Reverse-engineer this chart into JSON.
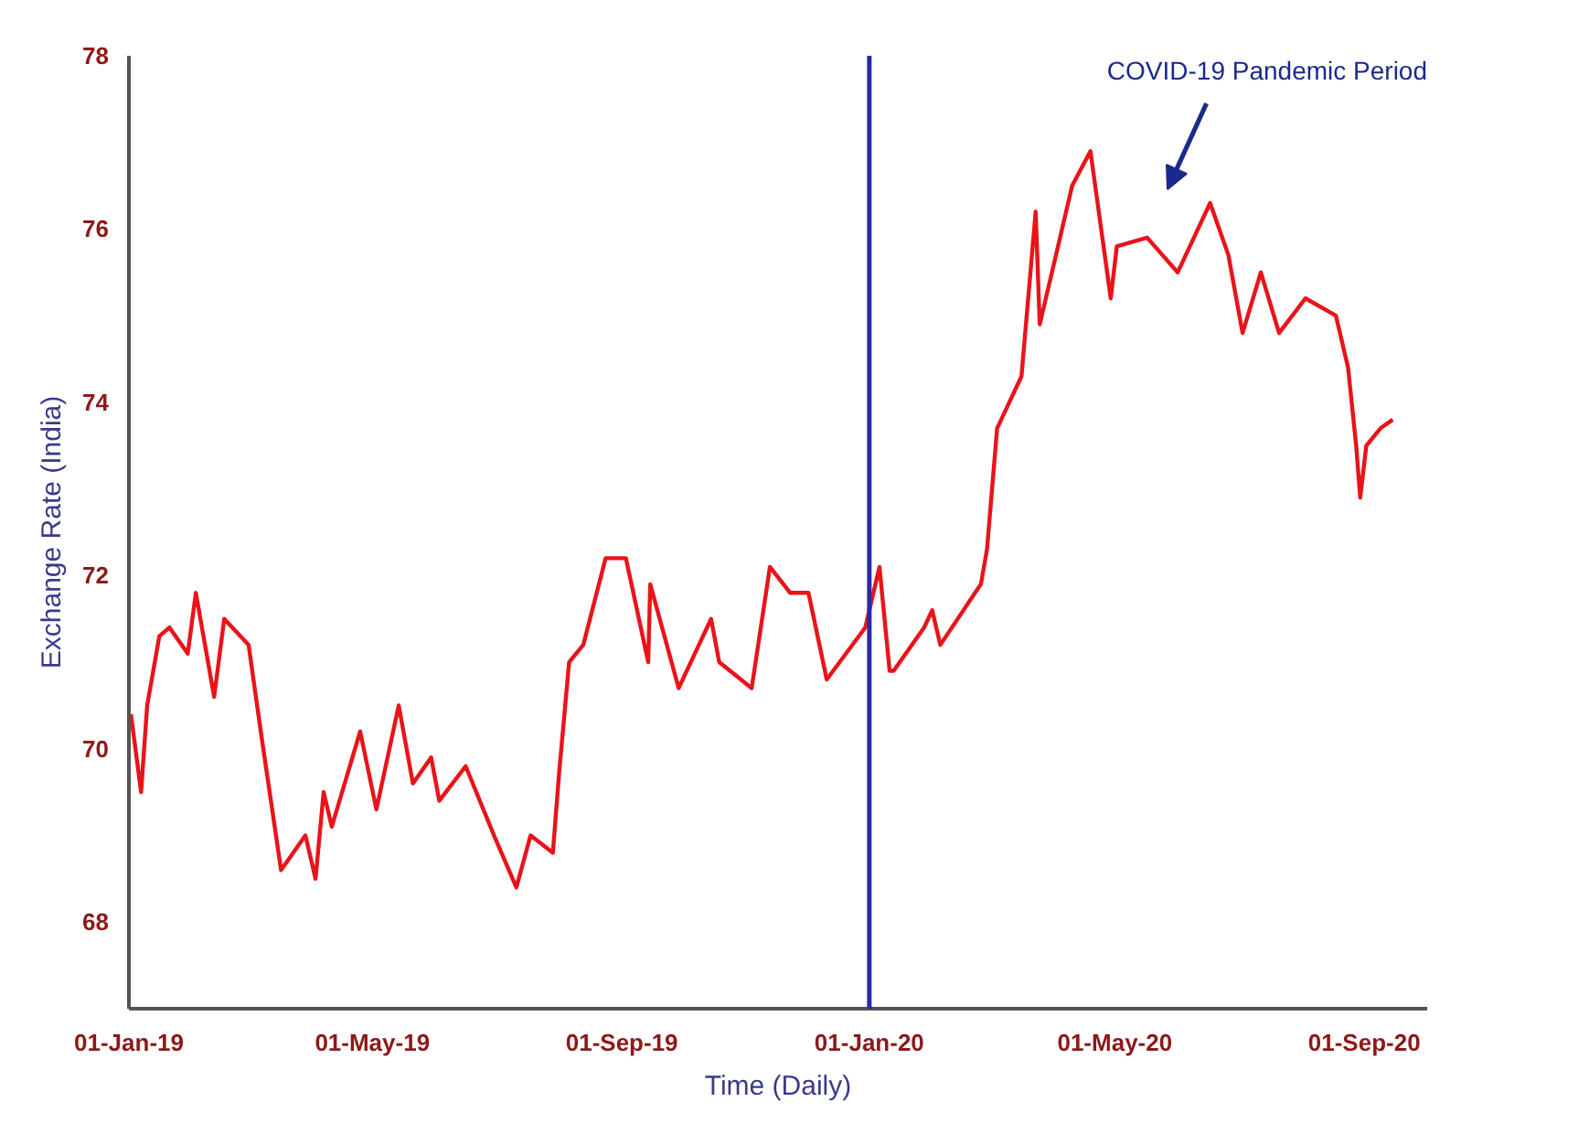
{
  "chart_data": {
    "type": "line",
    "xlabel": "Time (Daily)",
    "ylabel": "Exchange Rate (India)",
    "x": [
      "2019-01-02",
      "2019-01-07",
      "2019-01-10",
      "2019-01-16",
      "2019-01-21",
      "2019-01-30",
      "2019-02-03",
      "2019-02-12",
      "2019-02-17",
      "2019-03-01",
      "2019-03-07",
      "2019-03-17",
      "2019-03-29",
      "2019-04-03",
      "2019-04-07",
      "2019-04-11",
      "2019-04-25",
      "2019-05-03",
      "2019-05-14",
      "2019-05-21",
      "2019-05-30",
      "2019-06-03",
      "2019-06-16",
      "2019-06-30",
      "2019-07-11",
      "2019-07-18",
      "2019-07-29",
      "2019-08-01",
      "2019-08-06",
      "2019-08-13",
      "2019-08-24",
      "2019-09-03",
      "2019-09-14",
      "2019-09-15",
      "2019-09-29",
      "2019-10-15",
      "2019-10-19",
      "2019-11-04",
      "2019-11-13",
      "2019-11-23",
      "2019-12-02",
      "2019-12-11",
      "2019-12-30",
      "2020-01-06",
      "2020-01-11",
      "2020-01-13",
      "2020-01-28",
      "2020-02-01",
      "2020-02-05",
      "2020-02-25",
      "2020-02-28",
      "2020-03-04",
      "2020-03-16",
      "2020-03-23",
      "2020-03-25",
      "2020-04-04",
      "2020-04-10",
      "2020-04-19",
      "2020-04-29",
      "2020-05-02",
      "2020-05-17",
      "2020-06-01",
      "2020-06-17",
      "2020-06-26",
      "2020-07-03",
      "2020-07-12",
      "2020-07-21",
      "2020-08-03",
      "2020-08-18",
      "2020-08-24",
      "2020-08-28",
      "2020-08-30",
      "2020-09-02",
      "2020-09-09",
      "2020-09-15"
    ],
    "series": [
      {
        "color": "#e8141a",
        "values": [
          70.4,
          69.5,
          70.5,
          71.3,
          71.4,
          71.1,
          71.8,
          70.6,
          71.5,
          71.2,
          70.2,
          68.6,
          69.0,
          68.5,
          69.5,
          69.1,
          70.2,
          69.3,
          70.5,
          69.6,
          69.9,
          69.4,
          69.8,
          69.0,
          68.4,
          69.0,
          68.8,
          69.7,
          71.0,
          71.2,
          72.2,
          72.2,
          71.0,
          71.9,
          70.7,
          71.5,
          71.0,
          70.7,
          72.1,
          71.8,
          71.8,
          70.8,
          71.4,
          72.1,
          70.9,
          70.9,
          71.4,
          71.6,
          71.2,
          71.9,
          72.3,
          73.7,
          74.3,
          76.2,
          74.9,
          75.9,
          76.5,
          76.9,
          75.2,
          75.8,
          75.9,
          75.5,
          76.3,
          75.7,
          74.8,
          75.5,
          74.8,
          75.2,
          75.0,
          74.4,
          73.5,
          72.9,
          73.5,
          73.7,
          73.8
        ]
      }
    ],
    "xlim": [
      "2019-01-01",
      "2020-10-02"
    ],
    "ylim": [
      67,
      78
    ],
    "xticks": [
      {
        "value": "2019-01-01",
        "label": "01-Jan-19"
      },
      {
        "value": "2019-05-01",
        "label": "01-May-19"
      },
      {
        "value": "2019-09-01",
        "label": "01-Sep-19"
      },
      {
        "value": "2020-01-01",
        "label": "01-Jan-20"
      },
      {
        "value": "2020-05-01",
        "label": "01-May-20"
      },
      {
        "value": "2020-09-01",
        "label": "01-Sep-20"
      }
    ],
    "yticks": [
      68,
      70,
      72,
      74,
      76,
      78
    ],
    "ref_lines": [
      {
        "axis": "x",
        "value": "2020-01-01",
        "color": "#2a2aa0"
      }
    ],
    "annotations": [
      "COVID-19 Pandemic Period"
    ],
    "grid": false,
    "marker": "none",
    "line_style": "solid"
  }
}
